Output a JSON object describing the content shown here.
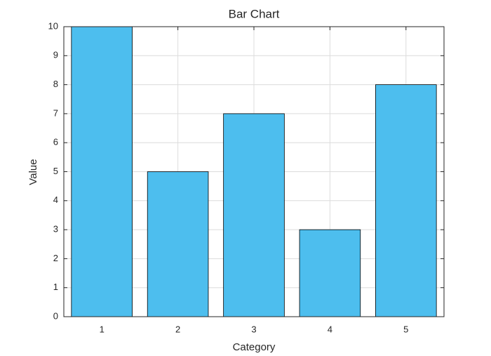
{
  "chart_data": {
    "type": "bar",
    "title": "Bar Chart",
    "xlabel": "Category",
    "ylabel": "Value",
    "x": [
      1,
      2,
      3,
      4,
      5
    ],
    "values": [
      10,
      5,
      7,
      3,
      8
    ],
    "color": "#4dbeee",
    "xlim": [
      0.5,
      5.5
    ],
    "xticks": [
      1,
      2,
      3,
      4,
      5
    ],
    "ylim": [
      0,
      10
    ],
    "yticks": [
      0,
      1,
      2,
      3,
      4,
      5,
      6,
      7,
      8,
      9,
      10
    ],
    "grid": true
  }
}
